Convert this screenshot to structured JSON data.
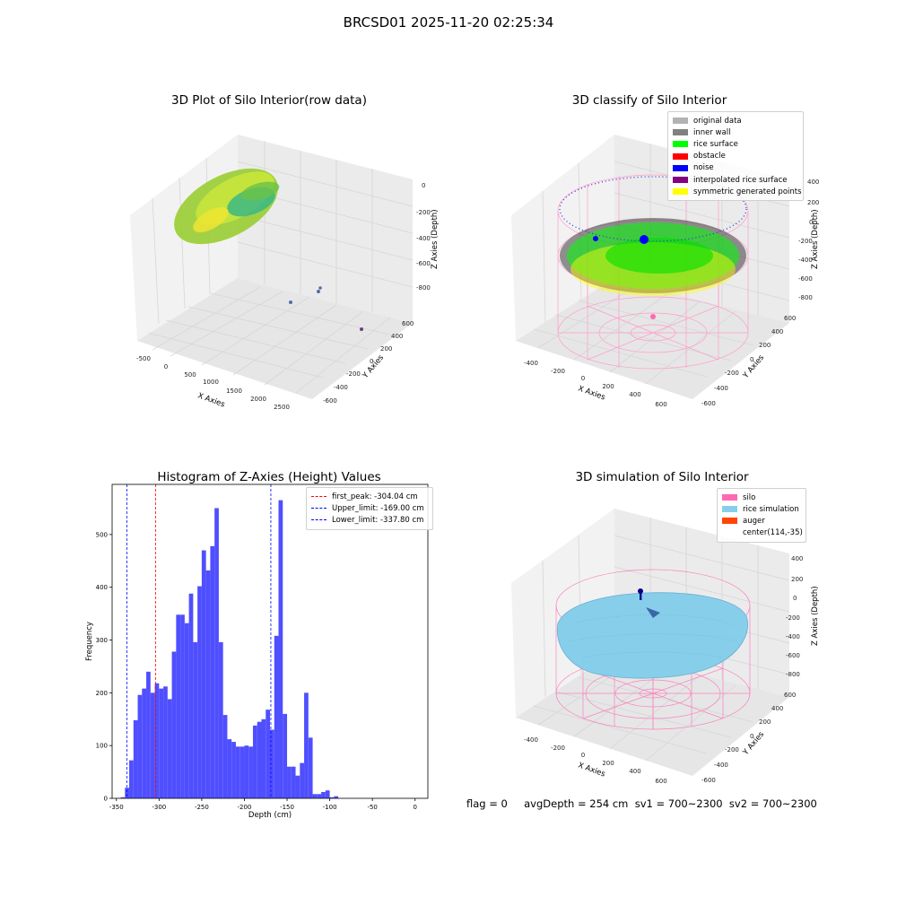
{
  "suptitle": "BRCSD01 2025-11-20 02:25:34",
  "panels": {
    "raw": {
      "title": "3D Plot of Silo Interior(row data)",
      "xlabel": "X Axies",
      "ylabel": "Y Axies",
      "zlabel": "Z Axies (Depth)",
      "x_ticks": [
        "-500",
        "0",
        "500",
        "1000",
        "1500",
        "2000",
        "2500"
      ],
      "y_ticks": [
        "600",
        "400",
        "200",
        "0",
        "-200",
        "-400",
        "-600"
      ],
      "z_ticks": [
        "0",
        "-200",
        "-400",
        "-600",
        "-800"
      ]
    },
    "classify": {
      "title": "3D classify of Silo Interior",
      "xlabel": "X Axies",
      "ylabel": "Y Axies",
      "zlabel": "Z Axies (Depth)",
      "x_ticks": [
        "-400",
        "-200",
        "0",
        "200",
        "400",
        "600"
      ],
      "y_ticks": [
        "600",
        "400",
        "200",
        "0",
        "-200",
        "-400",
        "-600"
      ],
      "z_ticks": [
        "400",
        "200",
        "0",
        "-200",
        "-400",
        "-600",
        "-800"
      ],
      "legend": [
        {
          "label": "original data",
          "color": "#b3b3b3"
        },
        {
          "label": "inner wall",
          "color": "#808080"
        },
        {
          "label": "rice surface",
          "color": "#00ff00"
        },
        {
          "label": "obstacle",
          "color": "#ff0000"
        },
        {
          "label": "noise",
          "color": "#0000ff"
        },
        {
          "label": "interpolated rice surface",
          "color": "#800080"
        },
        {
          "label": "symmetric generated points",
          "color": "#ffff00"
        }
      ]
    },
    "simulation": {
      "title": "3D simulation of Silo Interior",
      "xlabel": "X Axies",
      "ylabel": "Y Axies",
      "zlabel": "Z Axies (Depth)",
      "x_ticks": [
        "-400",
        "-200",
        "0",
        "200",
        "400",
        "600"
      ],
      "y_ticks": [
        "600",
        "400",
        "200",
        "0",
        "-200",
        "-400",
        "-600"
      ],
      "z_ticks": [
        "400",
        "200",
        "0",
        "-200",
        "-400",
        "-600",
        "-800"
      ],
      "legend": [
        {
          "label": "silo",
          "color": "#ff69b4"
        },
        {
          "label": "rice simulation",
          "color": "#87ceeb"
        },
        {
          "label": "auger",
          "color": "#ff4500"
        },
        {
          "label": "center(114,-35)",
          "color": ""
        }
      ]
    }
  },
  "status": "flag = 0     avgDepth = 254 cm  sv1 = 700~2300  sv2 = 700~2300",
  "chart_data": [
    {
      "type": "histogram",
      "title": "Histogram of Z-Axies (Height) Values",
      "xlabel": "Depth (cm)",
      "ylabel": "Frequency",
      "bar_color": "#4b4bff",
      "bin_width": 5,
      "x": [
        -342.5,
        -337.5,
        -332.5,
        -327.5,
        -322.5,
        -317.5,
        -312.5,
        -307.5,
        -302.5,
        -297.5,
        -292.5,
        -287.5,
        -282.5,
        -277.5,
        -272.5,
        -267.5,
        -262.5,
        -257.5,
        -252.5,
        -247.5,
        -242.5,
        -237.5,
        -232.5,
        -227.5,
        -222.5,
        -217.5,
        -212.5,
        -207.5,
        -202.5,
        -197.5,
        -192.5,
        -187.5,
        -182.5,
        -177.5,
        -172.5,
        -167.5,
        -162.5,
        -157.5,
        -152.5,
        -147.5,
        -142.5,
        -137.5,
        -132.5,
        -127.5,
        -122.5,
        -117.5,
        -112.5,
        -107.5,
        -102.5,
        -97.5,
        -92.5,
        -87.5,
        -82.5,
        -77.5,
        -72.5,
        -67.5,
        -62.5,
        -57.5,
        -52.5,
        -47.5,
        -42.5,
        -37.5,
        -32.5,
        -27.5,
        -22.5,
        -17.5,
        -12.5,
        -7.5,
        -2.5,
        2.5,
        7.5
      ],
      "values": [
        2,
        20,
        72,
        148,
        196,
        208,
        240,
        200,
        218,
        208,
        212,
        188,
        278,
        348,
        348,
        332,
        388,
        296,
        402,
        470,
        432,
        478,
        550,
        296,
        158,
        112,
        107,
        98,
        98,
        100,
        98,
        138,
        145,
        150,
        168,
        130,
        308,
        565,
        160,
        60,
        60,
        43,
        67,
        200,
        115,
        8,
        8,
        12,
        15,
        2,
        4,
        0,
        0,
        0,
        0,
        0,
        0,
        0,
        0,
        0,
        0,
        0,
        0,
        0,
        0,
        0,
        0,
        0,
        0,
        0,
        0
      ],
      "xlim": [
        -355,
        15
      ],
      "ylim": [
        0,
        595
      ],
      "xticks": [
        -350,
        -300,
        -250,
        -200,
        -150,
        -100,
        -50,
        0
      ],
      "yticks": [
        0,
        100,
        200,
        300,
        400,
        500
      ],
      "vlines": [
        {
          "label": "first_peak: -304.04 cm",
          "x": -304.04,
          "color": "#ff0000"
        },
        {
          "label": "Upper_limit: -169.00 cm",
          "x": -169.0,
          "color": "#0000ff"
        },
        {
          "label": "Lower_limit: -337.80 cm",
          "x": -337.8,
          "color": "#0000ff"
        }
      ],
      "legend_position": "upper right"
    }
  ]
}
